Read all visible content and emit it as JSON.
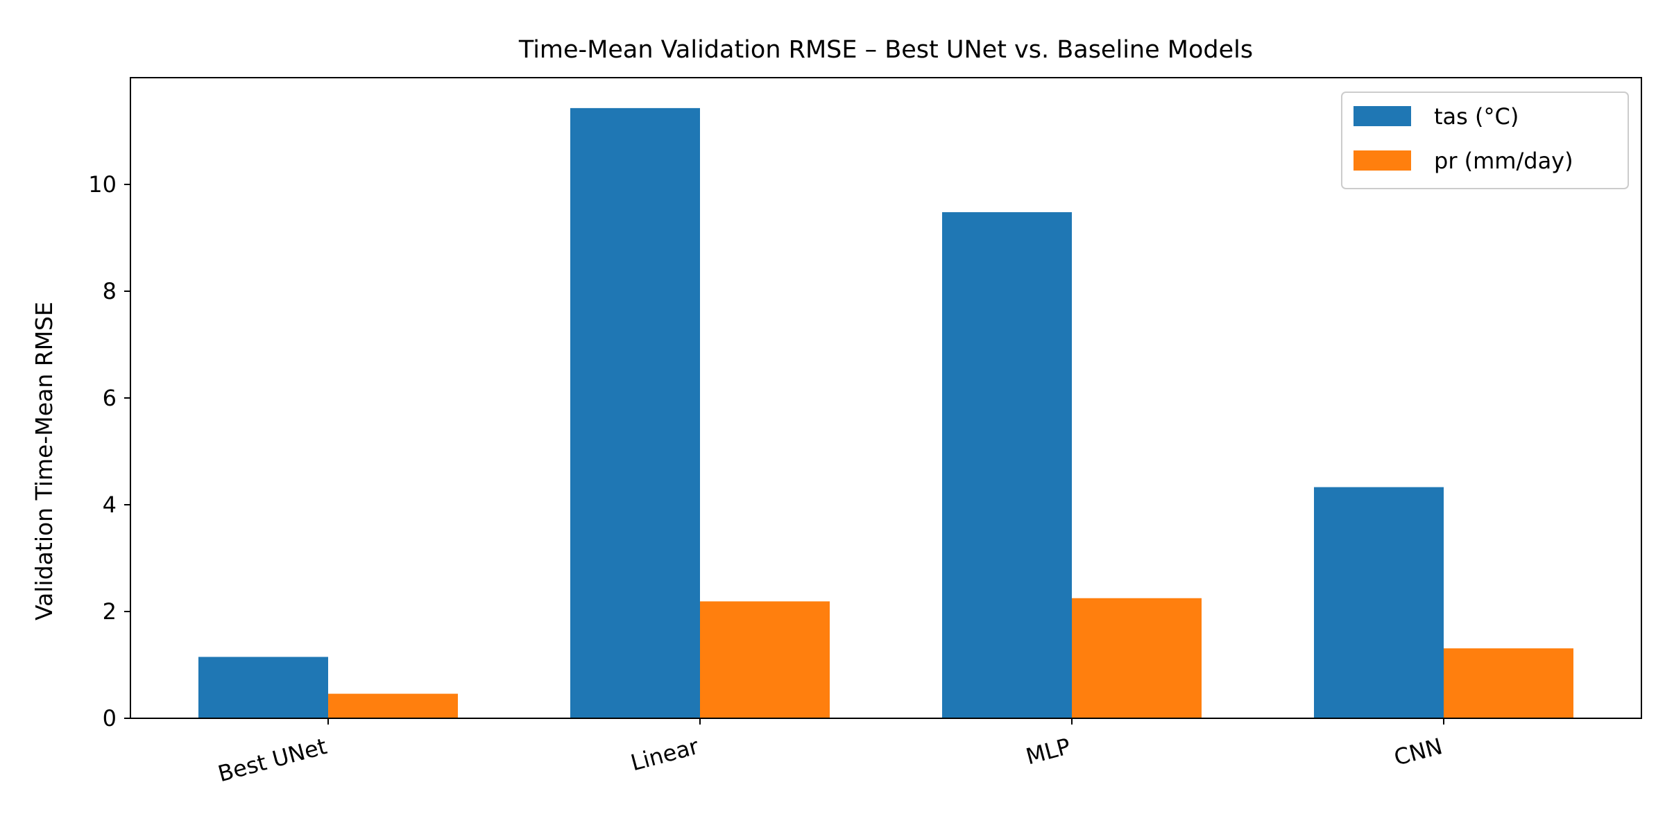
{
  "chart_data": {
    "type": "bar",
    "title": "Time-Mean Validation RMSE – Best UNet vs. Baseline Models",
    "xlabel": "",
    "ylabel": "Validation Time-Mean RMSE",
    "categories": [
      "Best UNet",
      "Linear",
      "MLP",
      "CNN"
    ],
    "series": [
      {
        "name": "tas (°C)",
        "color": "#1f77b4",
        "values": [
          1.15,
          11.43,
          9.48,
          4.33
        ]
      },
      {
        "name": "pr (mm/day)",
        "color": "#ff7f0e",
        "values": [
          0.46,
          2.19,
          2.25,
          1.31
        ]
      }
    ],
    "ylim": [
      0,
      12.0
    ],
    "yticks": [
      0,
      2,
      4,
      6,
      8,
      10
    ],
    "grid": false,
    "legend_position": "top-right"
  }
}
